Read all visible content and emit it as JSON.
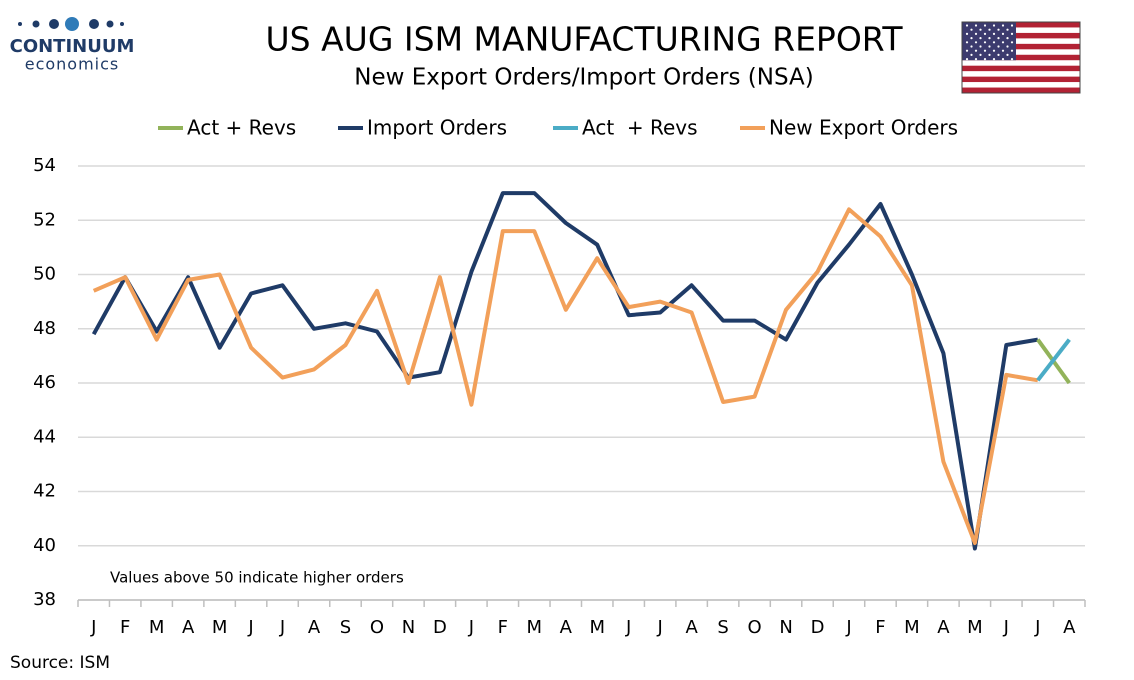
{
  "logo": {
    "name": "CONTINUUM",
    "tagline": "economics"
  },
  "chart_data": {
    "type": "line",
    "title": "US AUG ISM MANUFACTURING REPORT",
    "subtitle": "New Export Orders/Import Orders (NSA)",
    "annotation": "Values above 50 indicate higher orders",
    "source": "Source: ISM",
    "categories": [
      "J",
      "F",
      "M",
      "A",
      "M",
      "J",
      "J",
      "A",
      "S",
      "O",
      "N",
      "D",
      "J",
      "F",
      "M",
      "A",
      "M",
      "J",
      "J",
      "A",
      "S",
      "O",
      "N",
      "D",
      "J",
      "F",
      "M",
      "A",
      "M",
      "J",
      "J",
      "A"
    ],
    "series": [
      {
        "name": "Act + Revs",
        "color": "#92b35a",
        "values": [
          null,
          null,
          null,
          null,
          null,
          null,
          null,
          null,
          null,
          null,
          null,
          null,
          null,
          null,
          null,
          null,
          null,
          null,
          null,
          null,
          null,
          null,
          null,
          null,
          null,
          null,
          null,
          null,
          null,
          null,
          47.6,
          46.0
        ]
      },
      {
        "name": "Import Orders",
        "color": "#1f3b67",
        "values": [
          47.8,
          49.9,
          47.9,
          49.9,
          47.3,
          49.3,
          49.6,
          48.0,
          48.2,
          47.9,
          46.2,
          46.4,
          50.1,
          53.0,
          53.0,
          51.9,
          51.1,
          48.5,
          48.6,
          49.6,
          48.3,
          48.3,
          47.6,
          49.7,
          51.1,
          52.6,
          50.0,
          47.1,
          39.9,
          47.4,
          47.6,
          null
        ]
      },
      {
        "name": "Act  + Revs",
        "color": "#4bacc6",
        "values": [
          null,
          null,
          null,
          null,
          null,
          null,
          null,
          null,
          null,
          null,
          null,
          null,
          null,
          null,
          null,
          null,
          null,
          null,
          null,
          null,
          null,
          null,
          null,
          null,
          null,
          null,
          null,
          null,
          null,
          null,
          46.1,
          47.6
        ]
      },
      {
        "name": "New Export Orders",
        "color": "#f2a05a",
        "values": [
          49.4,
          49.9,
          47.6,
          49.8,
          50.0,
          47.3,
          46.2,
          46.5,
          47.4,
          49.4,
          46.0,
          49.9,
          45.2,
          51.6,
          51.6,
          48.7,
          50.6,
          48.8,
          49.0,
          48.6,
          45.3,
          45.5,
          48.7,
          50.1,
          52.4,
          51.4,
          49.6,
          43.1,
          40.1,
          46.3,
          46.1,
          null
        ]
      }
    ],
    "ylim": [
      38,
      54
    ],
    "yticks": [
      38,
      40,
      42,
      44,
      46,
      48,
      50,
      52,
      54
    ],
    "grid": true,
    "legend": "top"
  }
}
